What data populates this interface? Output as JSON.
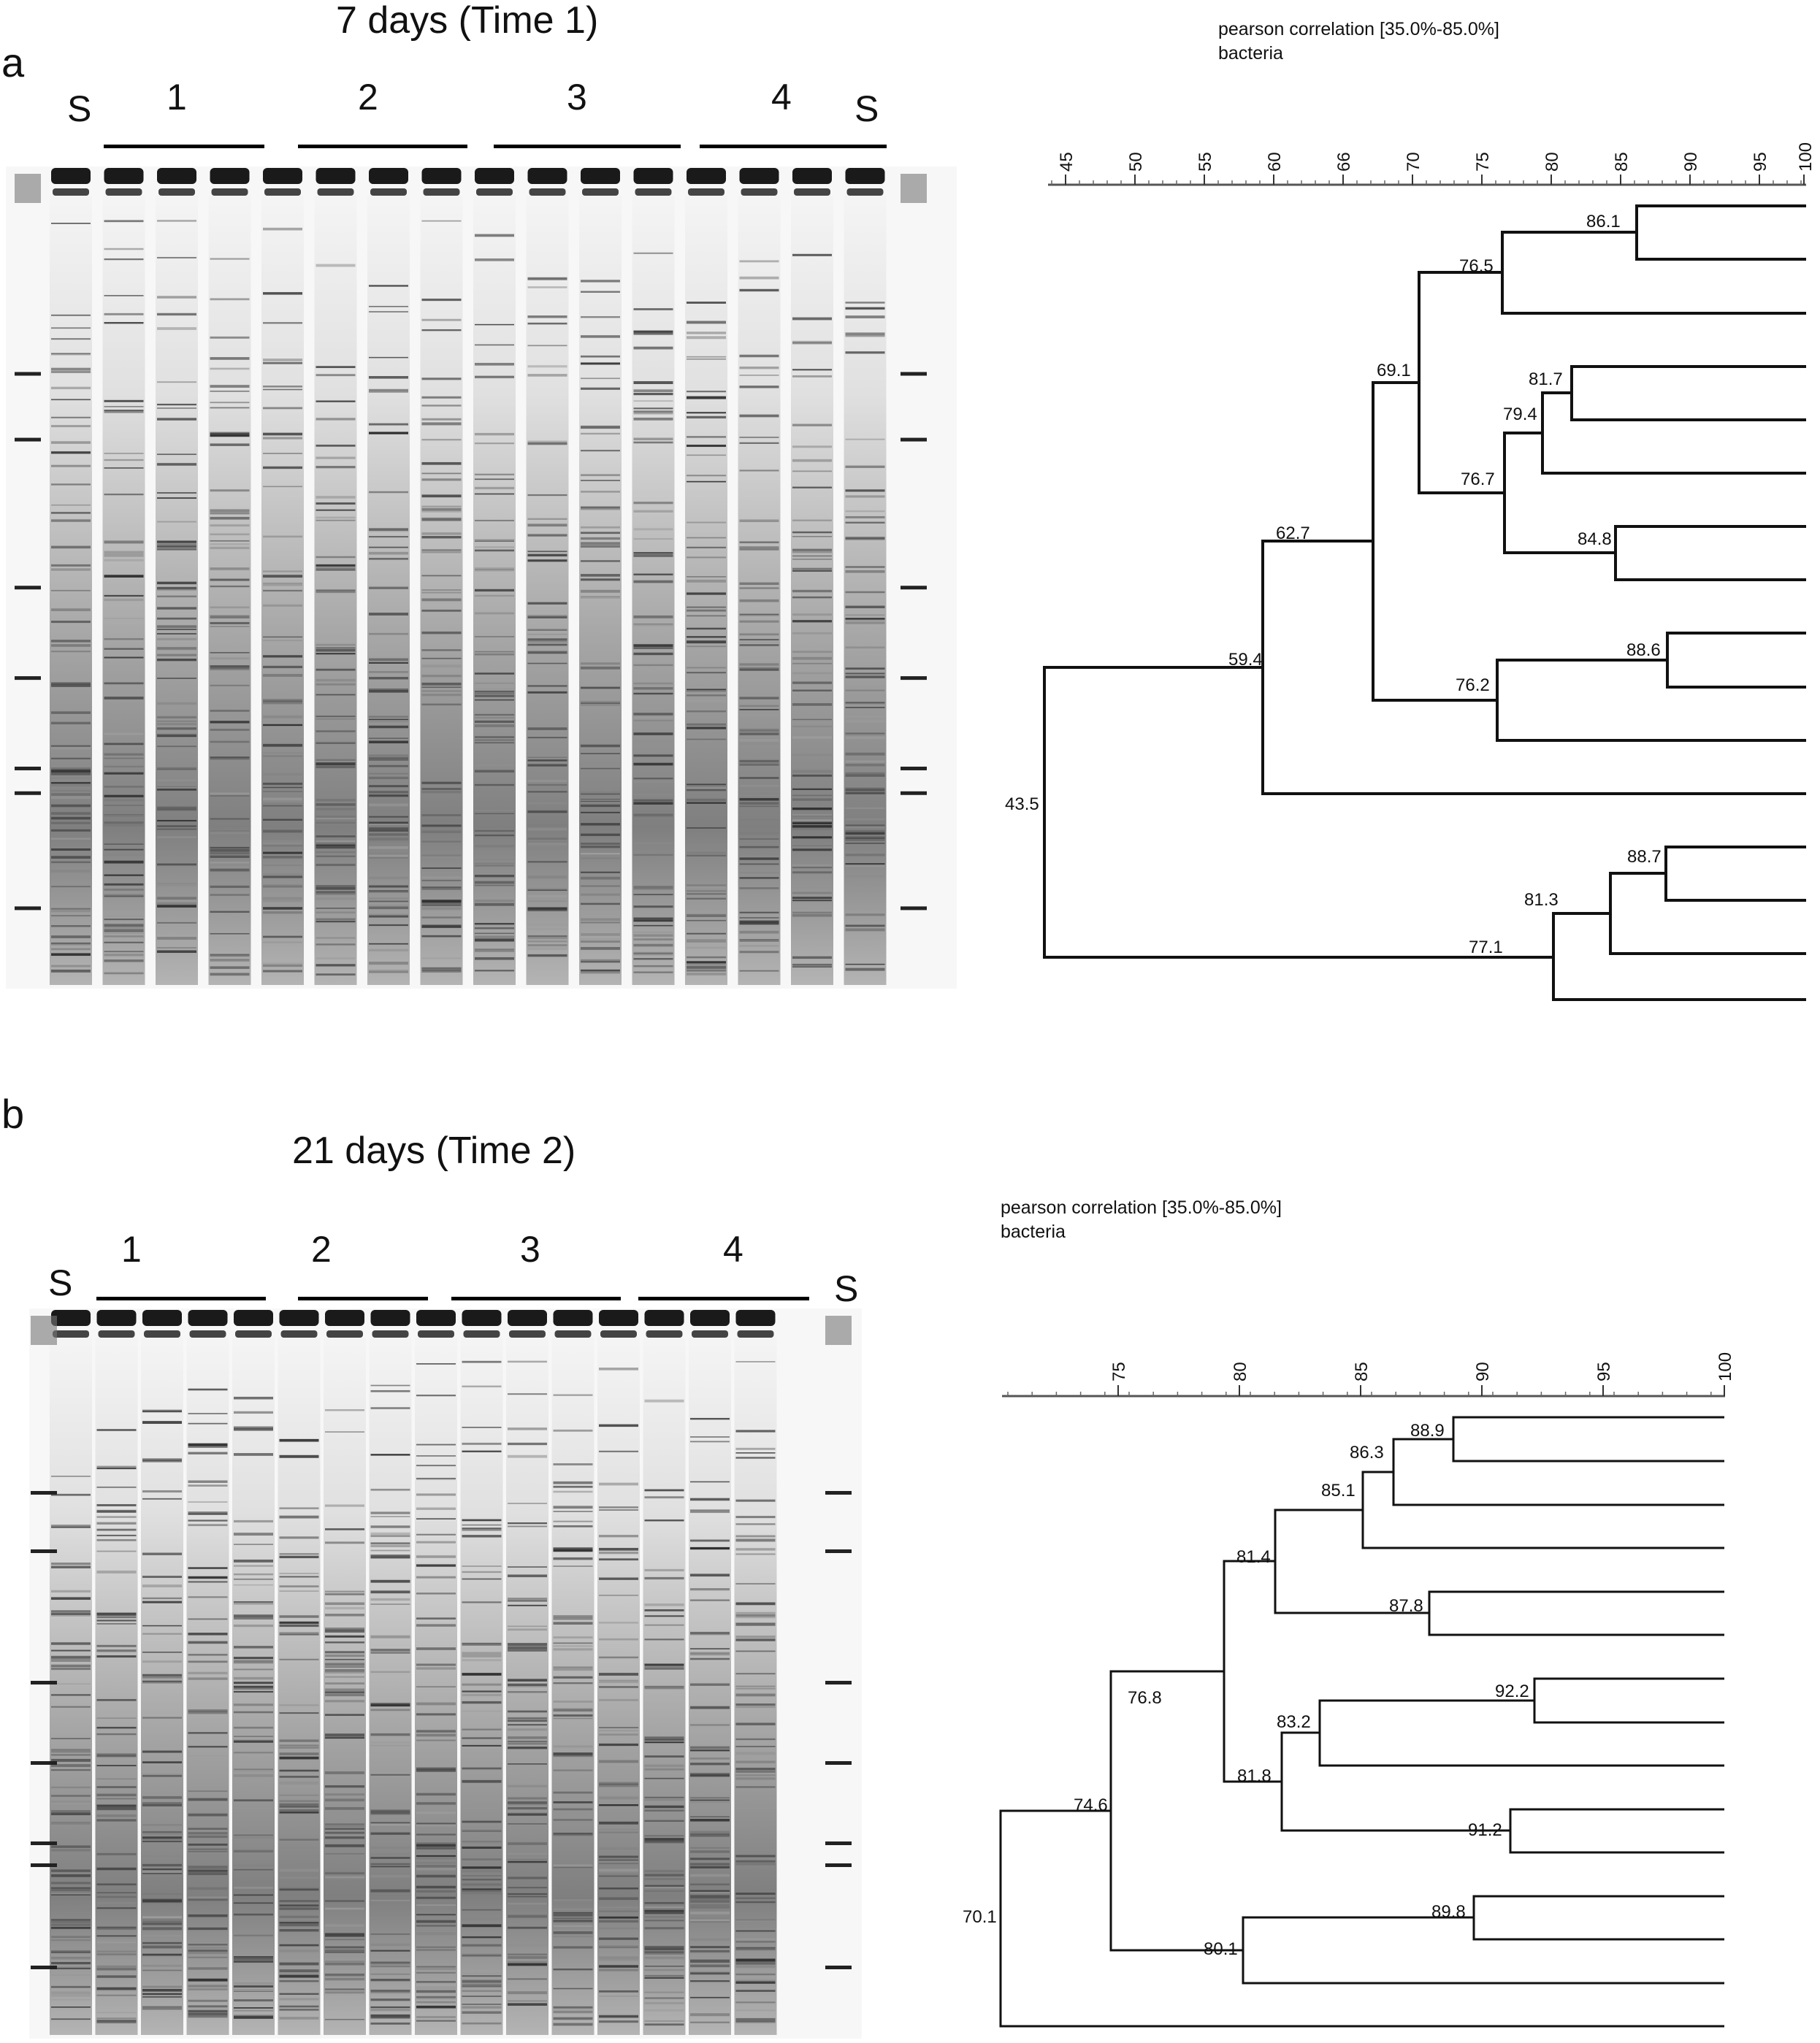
{
  "panels": [
    {
      "letter": "a",
      "title": "7 days (Time 1)",
      "standard_label": "S",
      "groups": [
        "1",
        "2",
        "3",
        "4"
      ],
      "dendrogram": {
        "header_line1": "pearson correlation [35.0%-85.0%]",
        "header_line2": "bacteria",
        "axis_ticks": [
          "45",
          "50",
          "55",
          "60",
          "66",
          "70",
          "75",
          "80",
          "85",
          "90",
          "95",
          "100"
        ],
        "node_labels": [
          "86.1",
          "76.5",
          "69.1",
          "81.7",
          "79.4",
          "76.7",
          "84.8",
          "62.7",
          "88.6",
          "59.4",
          "76.2",
          "43.5",
          "88.7",
          "81.3",
          "77.1"
        ]
      }
    },
    {
      "letter": "b",
      "title": "21 days (Time 2)",
      "standard_label": "S",
      "groups": [
        "1",
        "2",
        "3",
        "4"
      ],
      "dendrogram": {
        "header_line1": "pearson correlation [35.0%-85.0%]",
        "header_line2": "bacteria",
        "axis_ticks": [
          "75",
          "80",
          "85",
          "90",
          "95",
          "100"
        ],
        "node_labels": [
          "88.9",
          "86.3",
          "85.1",
          "81.4",
          "87.8",
          "76.8",
          "92.2",
          "83.2",
          "81.8",
          "91.2",
          "74.6",
          "70.1",
          "89.8",
          "80.1"
        ]
      }
    }
  ]
}
